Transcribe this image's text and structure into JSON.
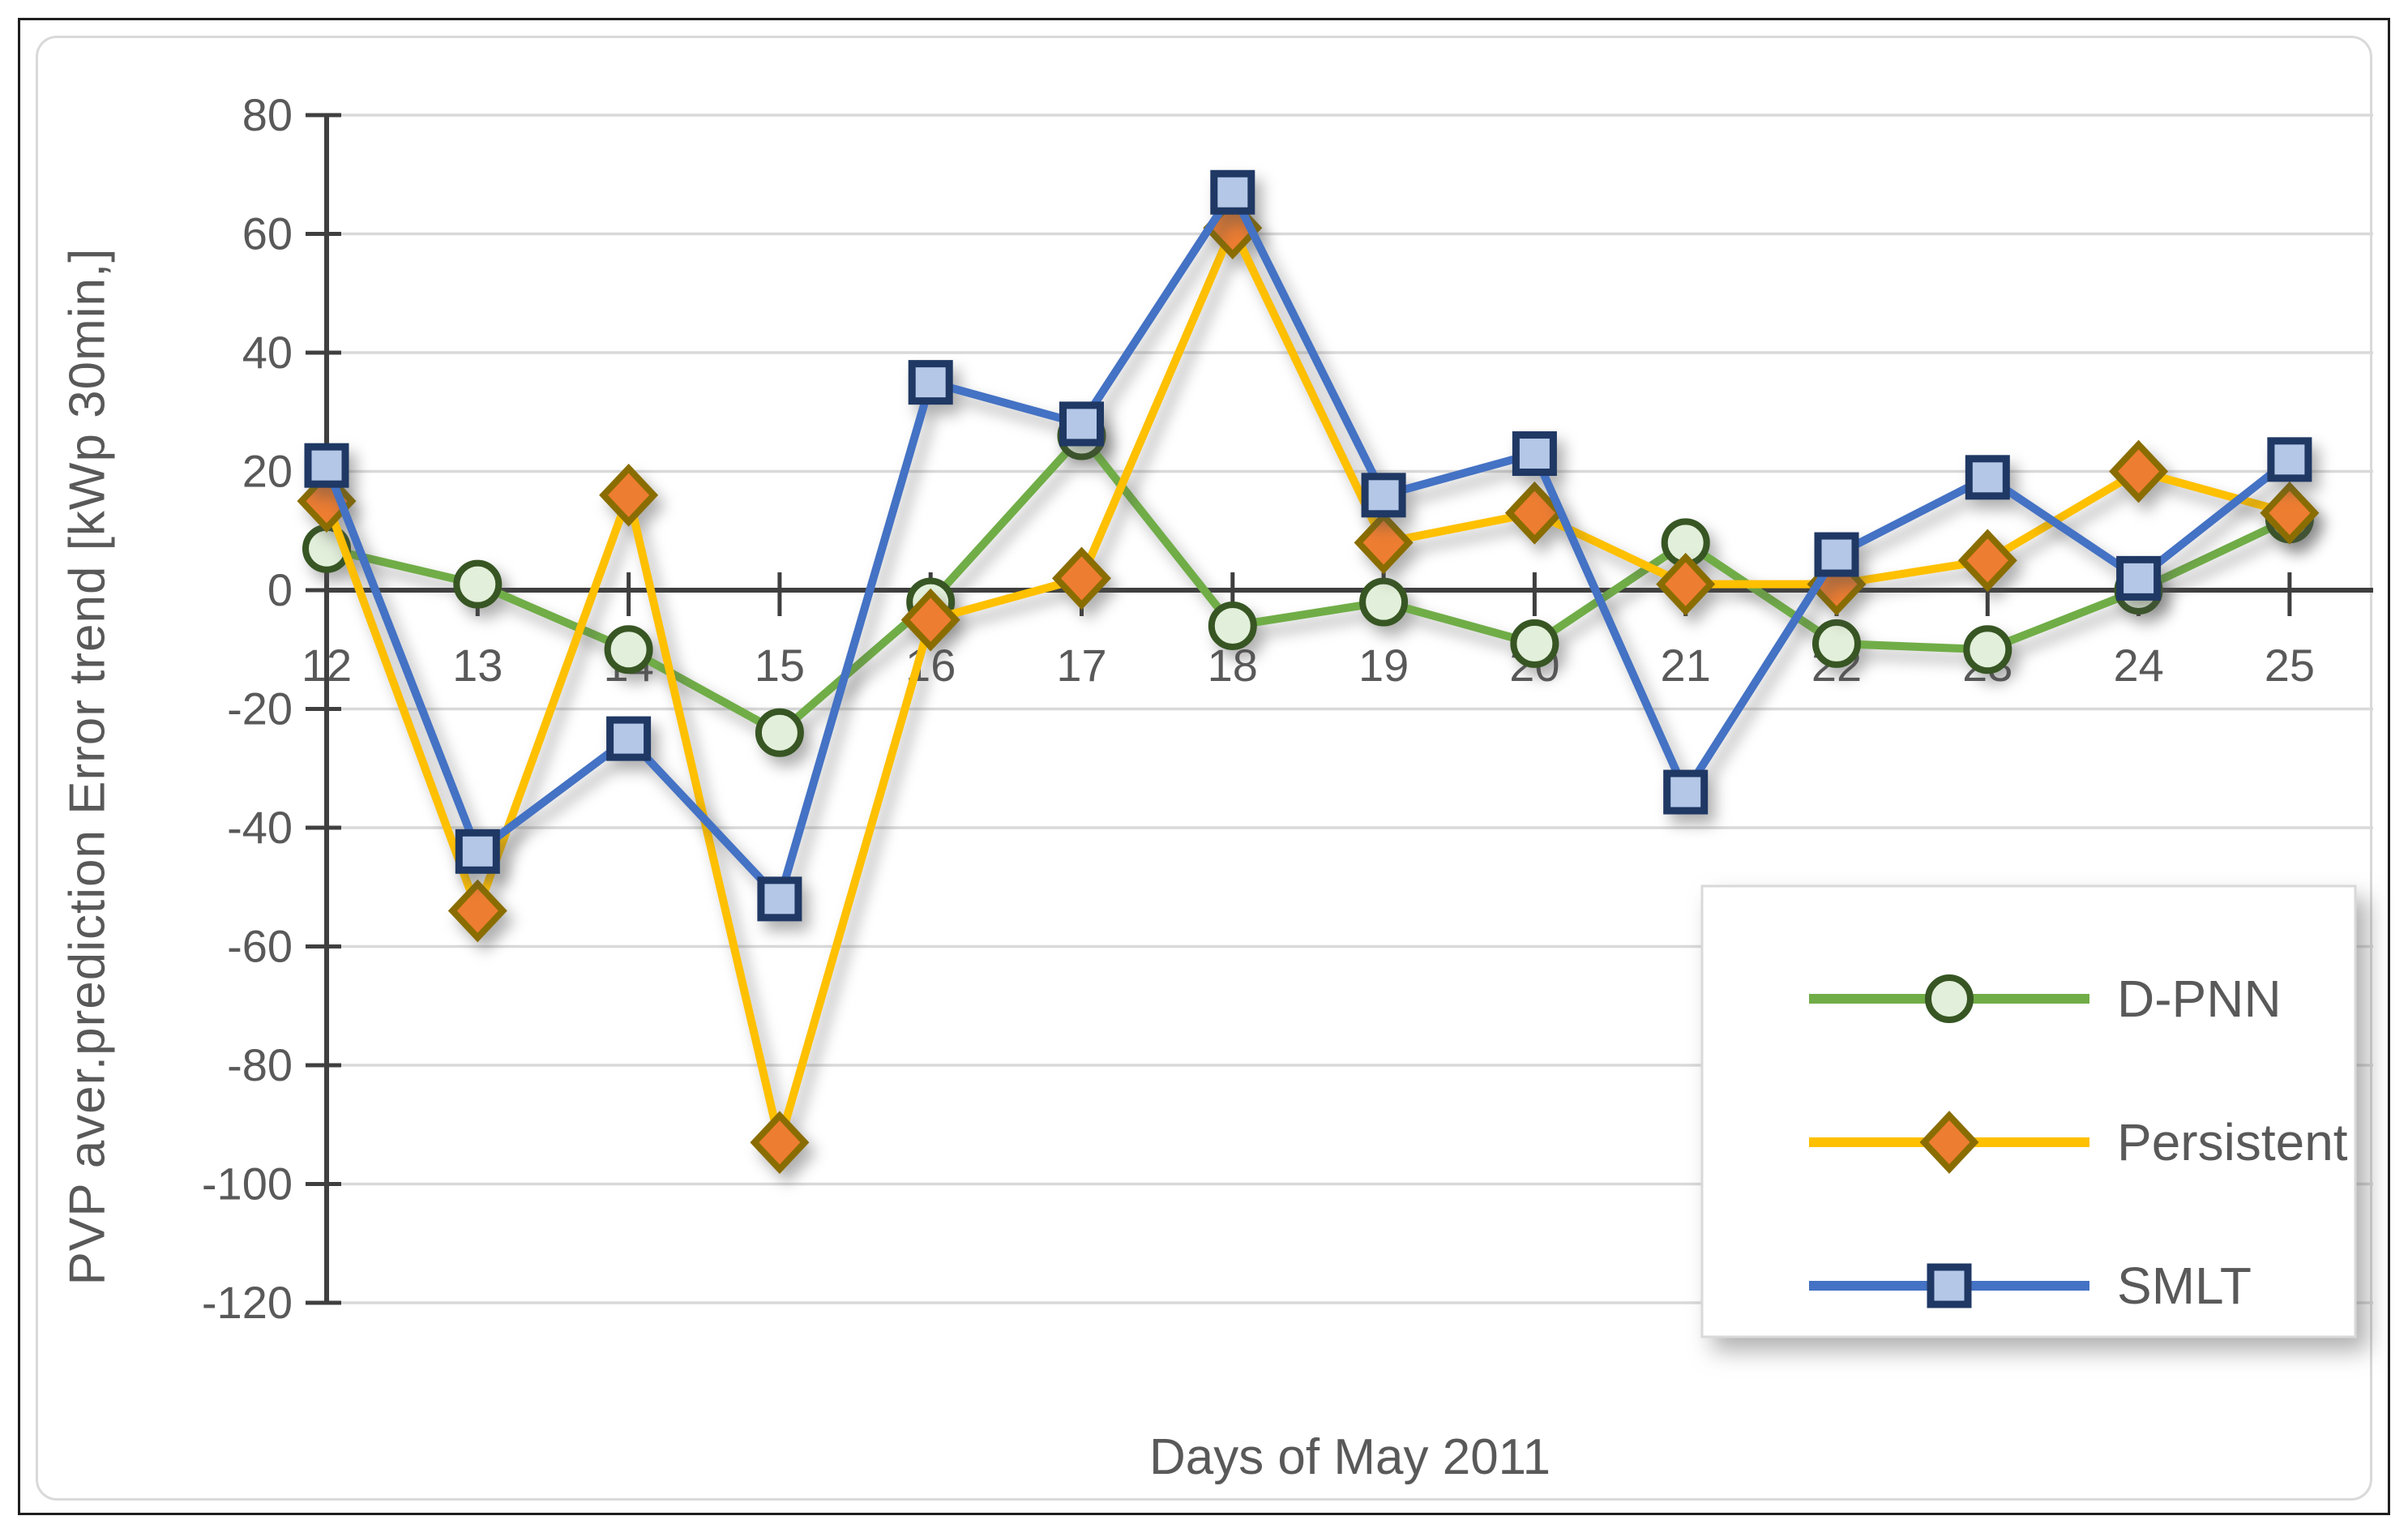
{
  "figure": {
    "y_axis_title": "PVP aver.prediction Error trend [kWp 30min,]",
    "x_axis_title": "Days of May 2011"
  },
  "chart_data": {
    "type": "line",
    "x": [
      12,
      13,
      14,
      15,
      16,
      17,
      18,
      19,
      20,
      21,
      22,
      23,
      24,
      25
    ],
    "xlabel": "Days of May 2011",
    "ylabel": "PVP aver.prediction Error trend [kWp 30min,]",
    "ylim": [
      -120,
      80
    ],
    "y_ticks": [
      80,
      60,
      40,
      20,
      0,
      -20,
      -40,
      -60,
      -80,
      -100,
      -120
    ],
    "grid": true,
    "legend_position": "inside-lower-right",
    "series": [
      {
        "name": "D-PNN",
        "marker": "circle",
        "line_color": "#70AD47",
        "marker_fill": "#E2EFDA",
        "marker_border": "#375623",
        "values": [
          7,
          1,
          -10,
          -24,
          -2,
          26,
          -6,
          -2,
          -9,
          8,
          -9,
          -10,
          0,
          12
        ]
      },
      {
        "name": "Persistent",
        "marker": "diamond",
        "line_color": "#FFC000",
        "marker_fill": "#ED7D31",
        "marker_border": "#8A6D00",
        "values": [
          15,
          -54,
          16,
          -93,
          -5,
          2,
          61,
          8,
          13,
          1,
          1,
          5,
          20,
          13
        ]
      },
      {
        "name": "SMLT",
        "marker": "square",
        "line_color": "#4472C4",
        "marker_fill": "#B4C7E7",
        "marker_border": "#1F3864",
        "values": [
          21,
          -44,
          -25,
          -52,
          35,
          28,
          67,
          16,
          23,
          -34,
          6,
          19,
          2,
          22
        ]
      }
    ]
  },
  "colors": {
    "grid": "#D9D9D9",
    "axis": "#3F3F3F",
    "tick_text": "#595959",
    "legend_border": "#D9D9D9",
    "legend_bg": "#FFFFFF"
  }
}
